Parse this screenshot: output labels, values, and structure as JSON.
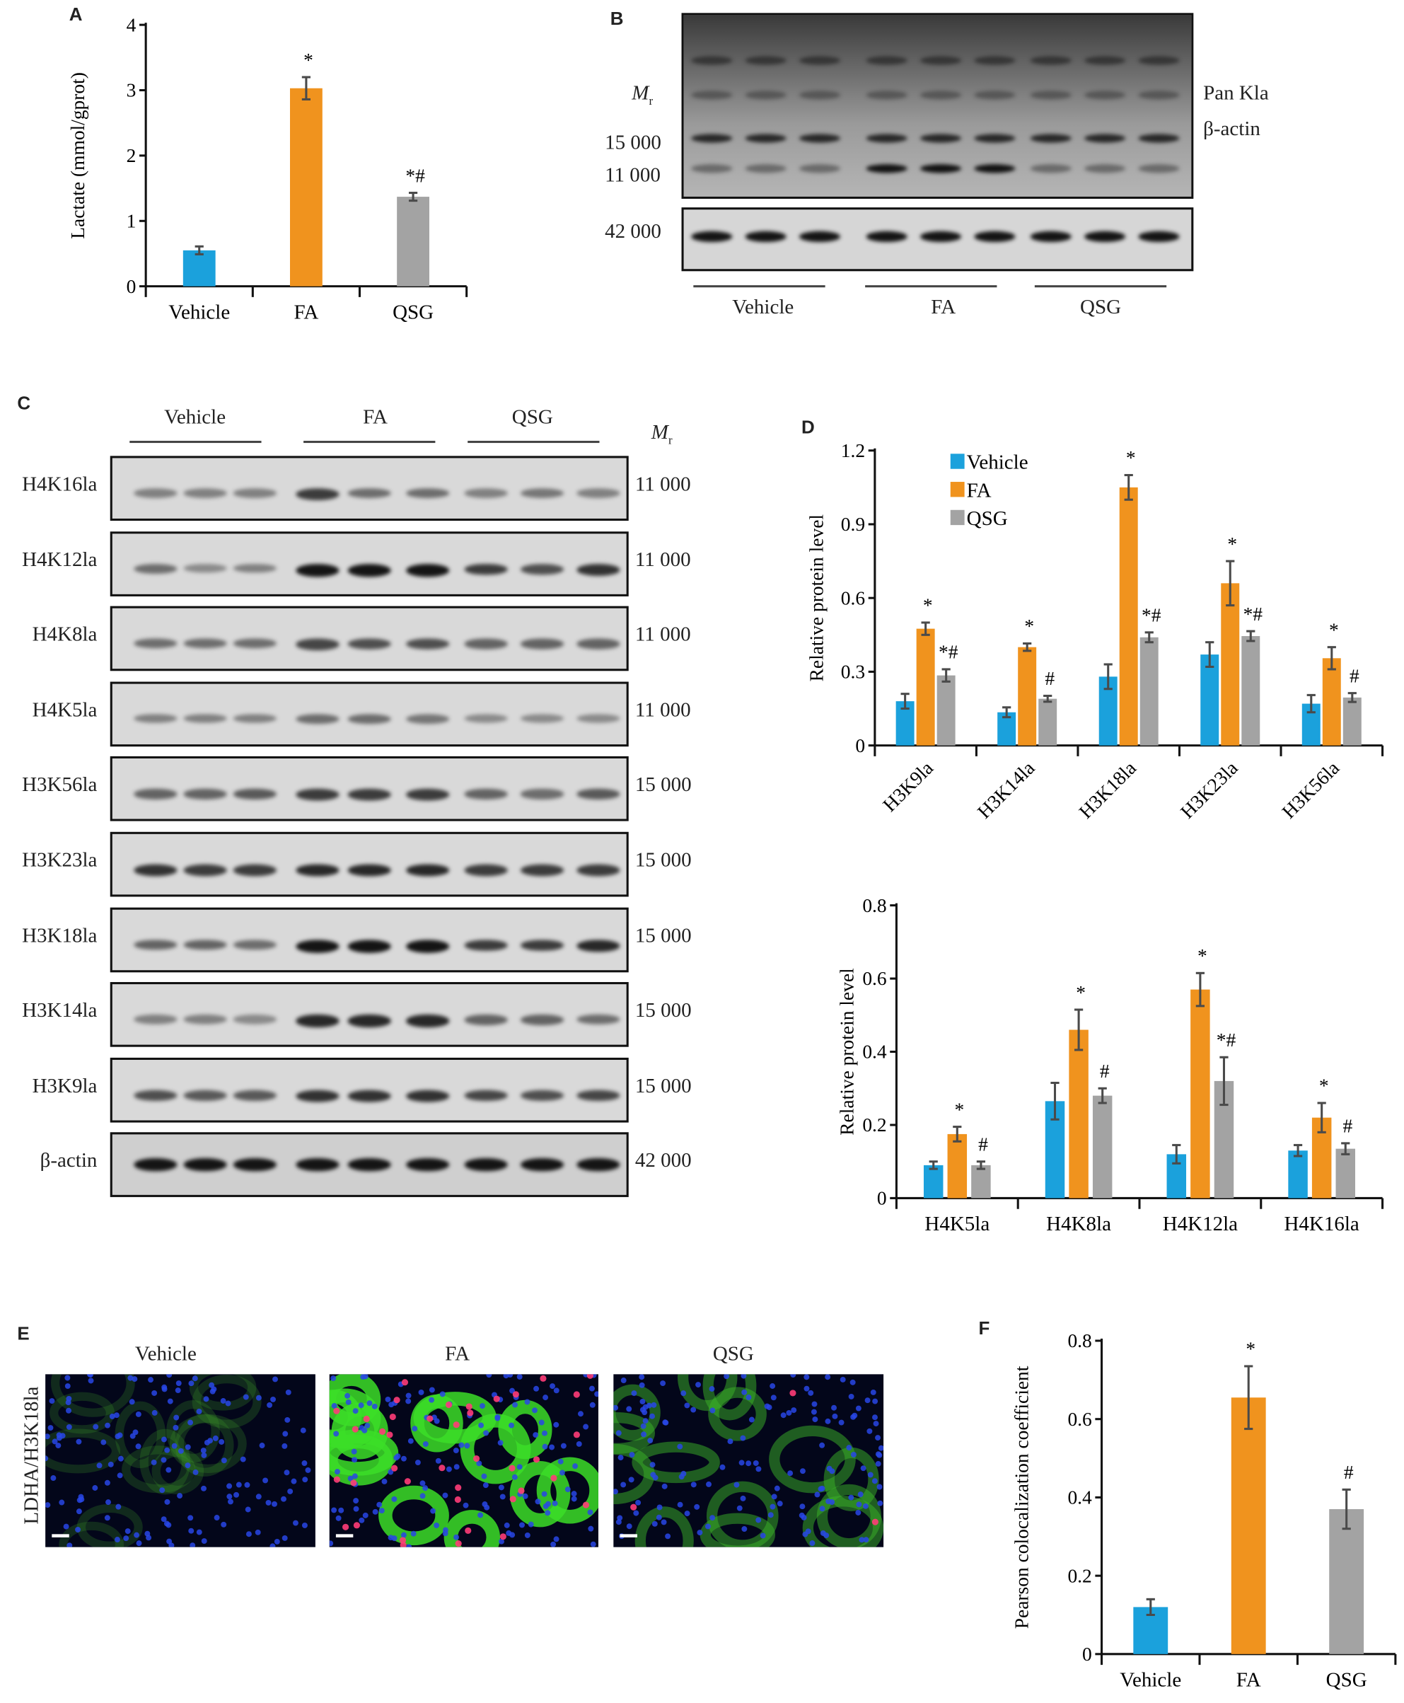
{
  "colors": {
    "vehicle": "#1ba1dc",
    "fa": "#f0931e",
    "qsg": "#a3a3a3",
    "error": "#4a4a4a"
  },
  "groups": [
    "Vehicle",
    "FA",
    "QSG"
  ],
  "panel_labels": {
    "a": "A",
    "b": "B",
    "c": "C",
    "d": "D",
    "e": "E",
    "f": "F"
  },
  "panel_b": {
    "mr_label": "M",
    "mr_sub": "r",
    "markers": [
      "15 000",
      "11 000",
      "42 000"
    ],
    "right_labels": [
      "Pan Kla",
      "β-actin"
    ],
    "groups": [
      "Vehicle",
      "FA",
      "QSG"
    ]
  },
  "panel_c": {
    "groups": [
      "Vehicle",
      "FA",
      "QSG"
    ],
    "mr_label": "M",
    "mr_sub": "r",
    "rows": [
      {
        "label": "H4K16la",
        "mr": "11 000"
      },
      {
        "label": "H4K12la",
        "mr": "11 000"
      },
      {
        "label": "H4K8la",
        "mr": "11 000"
      },
      {
        "label": "H4K5la",
        "mr": "11 000"
      },
      {
        "label": "H3K56la",
        "mr": "15 000"
      },
      {
        "label": "H3K23la",
        "mr": "15 000"
      },
      {
        "label": "H3K18la",
        "mr": "15 000"
      },
      {
        "label": "H3K14la",
        "mr": "15 000"
      },
      {
        "label": "H3K9la",
        "mr": "15 000"
      },
      {
        "label": "β-actin",
        "mr": "42 000"
      }
    ]
  },
  "panel_e": {
    "row_label": "LDHA/H3K18la",
    "titles": [
      "Vehicle",
      "FA",
      "QSG"
    ]
  },
  "chart_data": [
    {
      "id": "A",
      "type": "bar",
      "title": "",
      "xlabel": "",
      "ylabel": "Lactate (mmol/gprot)",
      "ylim": [
        0,
        4
      ],
      "yticks": [
        "0",
        "1",
        "2",
        "3",
        "4"
      ],
      "categories": [
        "Vehicle",
        "FA",
        "QSG"
      ],
      "values": [
        0.55,
        3.03,
        1.37
      ],
      "errors": [
        0.06,
        0.17,
        0.06
      ],
      "annotations": [
        "",
        "*",
        "*#"
      ]
    },
    {
      "id": "D1",
      "type": "bar",
      "ylabel": "Relative protein level",
      "ylim": [
        0,
        1.2
      ],
      "yticks": [
        "0",
        "0.3",
        "0.6",
        "0.9",
        "1.2"
      ],
      "legend": "top-left",
      "categories": [
        "H3K9la",
        "H3K14la",
        "H3K18la",
        "H3K23la",
        "H3K56la"
      ],
      "series": [
        {
          "name": "Vehicle",
          "values": [
            0.18,
            0.135,
            0.28,
            0.37,
            0.17
          ],
          "errors": [
            0.03,
            0.02,
            0.05,
            0.05,
            0.035
          ],
          "annotations": [
            "",
            "",
            "",
            "",
            ""
          ]
        },
        {
          "name": "FA",
          "values": [
            0.475,
            0.4,
            1.05,
            0.66,
            0.355
          ],
          "errors": [
            0.025,
            0.015,
            0.05,
            0.09,
            0.045
          ],
          "annotations": [
            "*",
            "*",
            "*",
            "*",
            "*"
          ]
        },
        {
          "name": "QSG",
          "values": [
            0.285,
            0.19,
            0.44,
            0.445,
            0.195
          ],
          "errors": [
            0.025,
            0.012,
            0.02,
            0.02,
            0.018
          ],
          "annotations": [
            "*#",
            "#",
            "*#",
            "*#",
            "#"
          ]
        }
      ]
    },
    {
      "id": "D2",
      "type": "bar",
      "ylabel": "Relative protein level",
      "ylim": [
        0,
        0.8
      ],
      "yticks": [
        "0",
        "0.2",
        "0.4",
        "0.6",
        "0.8"
      ],
      "categories": [
        "H4K5la",
        "H4K8la",
        "H4K12la",
        "H4K16la"
      ],
      "series": [
        {
          "name": "Vehicle",
          "values": [
            0.09,
            0.265,
            0.12,
            0.13
          ],
          "errors": [
            0.01,
            0.05,
            0.025,
            0.015
          ],
          "annotations": [
            "",
            "",
            "",
            ""
          ]
        },
        {
          "name": "FA",
          "values": [
            0.175,
            0.46,
            0.57,
            0.22
          ],
          "errors": [
            0.02,
            0.055,
            0.045,
            0.04
          ],
          "annotations": [
            "*",
            "*",
            "*",
            "*"
          ]
        },
        {
          "name": "QSG",
          "values": [
            0.09,
            0.28,
            0.32,
            0.135
          ],
          "errors": [
            0.01,
            0.02,
            0.065,
            0.015
          ],
          "annotations": [
            "#",
            "#",
            "*#",
            "#"
          ]
        }
      ]
    },
    {
      "id": "F",
      "type": "bar",
      "ylabel": "Pearson colocalization coefficient",
      "ylim": [
        0,
        0.8
      ],
      "yticks": [
        "0",
        "0.2",
        "0.4",
        "0.6",
        "0.8"
      ],
      "categories": [
        "Vehicle",
        "FA",
        "QSG"
      ],
      "values": [
        0.12,
        0.655,
        0.37
      ],
      "errors": [
        0.02,
        0.08,
        0.05
      ],
      "annotations": [
        "",
        "*",
        "#"
      ]
    }
  ]
}
